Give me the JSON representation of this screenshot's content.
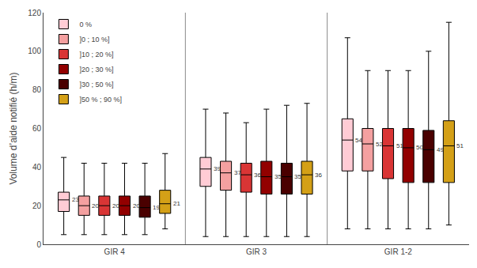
{
  "chart_data": {
    "type": "box",
    "ylabel": "Volume d’aide notifié (h/m)",
    "categories": [
      "GIR 4",
      "GIR 3",
      "GIR 1-2"
    ],
    "series": [
      {
        "name": "0 %",
        "color": "#FFCCD5",
        "whislo": [
          5,
          4,
          8
        ],
        "q1": [
          17,
          30,
          38
        ],
        "median": [
          23,
          39,
          54
        ],
        "q3": [
          27,
          45,
          65
        ],
        "whishi": [
          45,
          70,
          107
        ]
      },
      {
        "name": "]0 ; 10 %]",
        "color": "#F4A0A0",
        "whislo": [
          5,
          4,
          8
        ],
        "q1": [
          15,
          28,
          38
        ],
        "median": [
          20,
          37,
          52
        ],
        "q3": [
          25,
          43,
          60
        ],
        "whishi": [
          42,
          68,
          90
        ]
      },
      {
        "name": "]10 ; 20 %]",
        "color": "#D93535",
        "whislo": [
          5,
          4,
          8
        ],
        "q1": [
          15,
          27,
          34
        ],
        "median": [
          20,
          36,
          51
        ],
        "q3": [
          25,
          42,
          60
        ],
        "whishi": [
          42,
          63,
          90
        ]
      },
      {
        "name": "]20 ; 30 %]",
        "color": "#920000",
        "whislo": [
          5,
          4,
          8
        ],
        "q1": [
          15,
          26,
          32
        ],
        "median": [
          20,
          35,
          50
        ],
        "q3": [
          25,
          43,
          60
        ],
        "whishi": [
          42,
          70,
          90
        ]
      },
      {
        "name": "]30 ; 50 %]",
        "color": "#4A0000",
        "whislo": [
          5,
          4,
          8
        ],
        "q1": [
          14,
          26,
          32
        ],
        "median": [
          19,
          35,
          49
        ],
        "q3": [
          25,
          42,
          59
        ],
        "whishi": [
          42,
          72,
          100
        ]
      },
      {
        "name": "]50 % ; 90 %]",
        "color": "#D4A017",
        "whislo": [
          8,
          4,
          10
        ],
        "q1": [
          16,
          26,
          32
        ],
        "median": [
          21,
          36,
          51
        ],
        "q3": [
          28,
          43,
          64
        ],
        "whishi": [
          47,
          73,
          115
        ]
      }
    ],
    "ylim": [
      0,
      120
    ],
    "yticks": [
      0,
      20,
      40,
      60,
      80,
      100,
      120
    ],
    "data_labels": true,
    "legend": "upper left",
    "grid": false
  }
}
